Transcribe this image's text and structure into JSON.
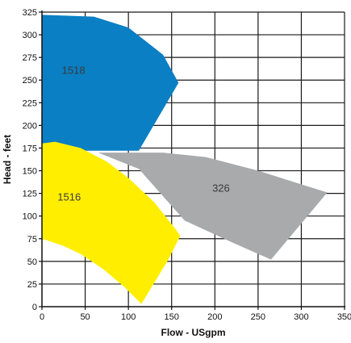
{
  "chart_data": {
    "type": "area",
    "title": "",
    "xlabel": "Flow - USgpm",
    "ylabel": "Head - feet",
    "xlim": [
      0,
      350
    ],
    "ylim": [
      0,
      325
    ],
    "xticks": [
      0,
      50,
      100,
      150,
      200,
      250,
      300,
      350
    ],
    "yticks": [
      0,
      25,
      50,
      75,
      100,
      125,
      150,
      175,
      200,
      225,
      250,
      275,
      300,
      325
    ],
    "grid": true,
    "legend": "none",
    "regions": [
      {
        "name": "1518",
        "color": "#0a7fc4",
        "label_at": [
          23,
          257
        ],
        "points": [
          [
            0,
            322
          ],
          [
            60,
            320
          ],
          [
            100,
            308
          ],
          [
            140,
            278
          ],
          [
            158,
            247
          ],
          [
            112,
            172
          ],
          [
            0,
            172
          ]
        ]
      },
      {
        "name": "326",
        "color": "#a9aaab",
        "label_at": [
          197,
          127
        ],
        "points": [
          [
            65,
            170
          ],
          [
            140,
            170
          ],
          [
            190,
            165
          ],
          [
            250,
            150
          ],
          [
            310,
            132
          ],
          [
            330,
            126
          ],
          [
            265,
            52
          ],
          [
            222,
            70
          ],
          [
            165,
            95
          ],
          [
            112,
            152
          ]
        ]
      },
      {
        "name": "1516",
        "color": "#ffee00",
        "label_at": [
          18,
          117
        ],
        "points": [
          [
            0,
            180
          ],
          [
            15,
            182
          ],
          [
            45,
            175
          ],
          [
            75,
            160
          ],
          [
            100,
            142
          ],
          [
            130,
            115
          ],
          [
            155,
            85
          ],
          [
            160,
            78
          ],
          [
            145,
            50
          ],
          [
            115,
            3
          ],
          [
            95,
            22
          ],
          [
            70,
            42
          ],
          [
            45,
            58
          ],
          [
            25,
            67
          ],
          [
            0,
            75
          ]
        ]
      }
    ]
  }
}
